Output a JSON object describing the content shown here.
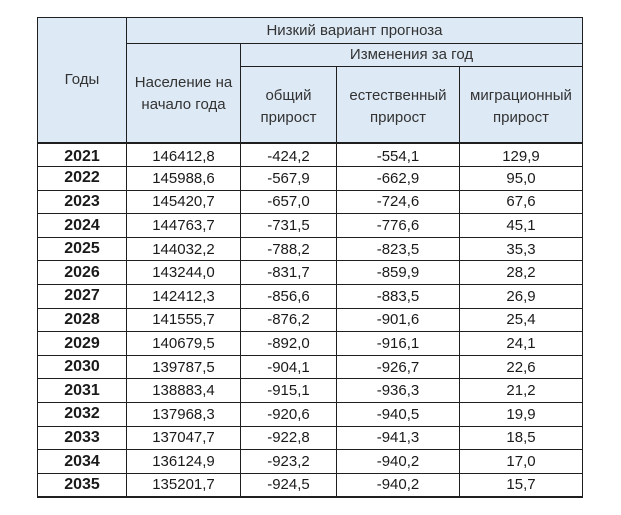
{
  "table": {
    "col_years": "Годы",
    "group_title": "Низкий вариант прогноза",
    "col_population": "Население на начало года",
    "subgroup_title": "Изменения за год",
    "col_total": "общий прирост",
    "col_natural": "естественный прирост",
    "col_migration": "миграционный прирост",
    "rows": [
      {
        "year": "2021",
        "population": "146412,8",
        "total": "-424,2",
        "natural": "-554,1",
        "migration": "129,9"
      },
      {
        "year": "2022",
        "population": "145988,6",
        "total": "-567,9",
        "natural": "-662,9",
        "migration": "95,0"
      },
      {
        "year": "2023",
        "population": "145420,7",
        "total": "-657,0",
        "natural": "-724,6",
        "migration": "67,6"
      },
      {
        "year": "2024",
        "population": "144763,7",
        "total": "-731,5",
        "natural": "-776,6",
        "migration": "45,1"
      },
      {
        "year": "2025",
        "population": "144032,2",
        "total": "-788,2",
        "natural": "-823,5",
        "migration": "35,3"
      },
      {
        "year": "2026",
        "population": "143244,0",
        "total": "-831,7",
        "natural": "-859,9",
        "migration": "28,2"
      },
      {
        "year": "2027",
        "population": "142412,3",
        "total": "-856,6",
        "natural": "-883,5",
        "migration": "26,9"
      },
      {
        "year": "2028",
        "population": "141555,7",
        "total": "-876,2",
        "natural": "-901,6",
        "migration": "25,4"
      },
      {
        "year": "2029",
        "population": "140679,5",
        "total": "-892,0",
        "natural": "-916,1",
        "migration": "24,1"
      },
      {
        "year": "2030",
        "population": "139787,5",
        "total": "-904,1",
        "natural": "-926,7",
        "migration": "22,6"
      },
      {
        "year": "2031",
        "population": "138883,4",
        "total": "-915,1",
        "natural": "-936,3",
        "migration": "21,2"
      },
      {
        "year": "2032",
        "population": "137968,3",
        "total": "-920,6",
        "natural": "-940,5",
        "migration": "19,9"
      },
      {
        "year": "2033",
        "population": "137047,7",
        "total": "-922,8",
        "natural": "-941,3",
        "migration": "18,5"
      },
      {
        "year": "2034",
        "population": "136124,9",
        "total": "-923,2",
        "natural": "-940,2",
        "migration": "17,0"
      },
      {
        "year": "2035",
        "population": "135201,7",
        "total": "-924,5",
        "natural": "-940,2",
        "migration": "15,7"
      }
    ]
  },
  "colors": {
    "header_bg": "#dde9f5",
    "border": "#1f1f1f"
  }
}
